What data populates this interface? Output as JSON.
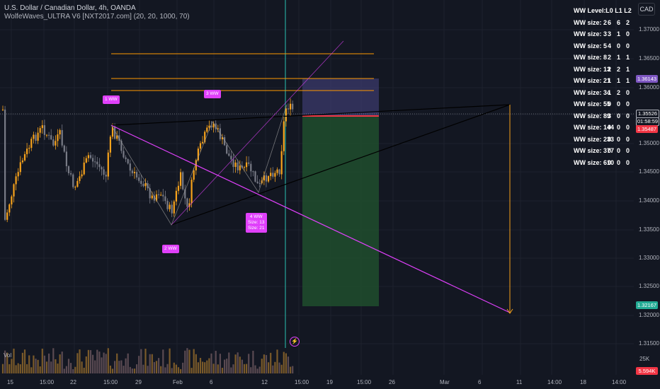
{
  "legend": {
    "symbol": "U.S. Dollar / Canadian Dollar, 4h, OANDA",
    "indicator": "WolfeWaves_ULTRA V6 [NXT2017.com] (20, 20, 1000, 70)"
  },
  "currency": "CAD",
  "volume_label": "Vol",
  "ww_table": {
    "header": [
      "WW Level:",
      "L0",
      "L1",
      "L2"
    ],
    "rows": [
      [
        "WW size: 2",
        "6",
        "6",
        "2"
      ],
      [
        "WW size: 3",
        "3",
        "1",
        "0"
      ],
      [
        "WW size: 5",
        "4",
        "0",
        "0"
      ],
      [
        "WW size: 8",
        "2",
        "1",
        "1"
      ],
      [
        "WW size: 13",
        "2",
        "2",
        "1"
      ],
      [
        "WW size: 21",
        "1",
        "1",
        "1"
      ],
      [
        "WW size: 34",
        "1",
        "2",
        "0"
      ],
      [
        "WW size: 55",
        "0",
        "0",
        "0"
      ],
      [
        "WW size: 89",
        "3",
        "0",
        "0"
      ],
      [
        "WW size: 144",
        "0",
        "0",
        "0"
      ],
      [
        "WW size: 233",
        "0",
        "0",
        "0"
      ],
      [
        "WW size: 377",
        "0",
        "0",
        "0"
      ],
      [
        "WW size: 610",
        "0",
        "0",
        "0"
      ]
    ]
  },
  "price_axis": [
    "1.37000",
    "1.36500",
    "1.36000",
    "1.35500",
    "1.35000",
    "1.34500",
    "1.34000",
    "1.33500",
    "1.33000",
    "1.32500",
    "1.32000",
    "1.31500"
  ],
  "price_tags": {
    "target_high": "1.36143",
    "last": "1.35526",
    "countdown": "01:58:59",
    "entry": "1.35487",
    "target_low": "1.32167",
    "volume": "5.594K",
    "vol_tick": "25K"
  },
  "time_axis": [
    "15",
    "15:00",
    "22",
    "15:00",
    "29",
    "Feb",
    "6",
    "12",
    "15:00",
    "19",
    "15:00",
    "26",
    "Mar",
    "6",
    "11",
    "14:00",
    "18",
    "14:00"
  ],
  "ww_labels": {
    "p1": "1 WW",
    "p2": "2 WW",
    "p3": "3 WW",
    "p4_line1": "4 WW",
    "p4_line2": "Size: 13",
    "p4_line3": "Size: 21"
  },
  "colors": {
    "background": "#131722",
    "bull": "#f7a21b",
    "bear": "#787b86",
    "wolfe": "#e040fb",
    "orange_levels": "#ff9800",
    "target_zone": "#1f4a2c",
    "stop_zone": "#3b3a6b",
    "tag_target_high": "#7e57c2",
    "tag_entry": "#f23645",
    "tag_target_low": "#22ab94",
    "tag_volume": "#f23645"
  }
}
